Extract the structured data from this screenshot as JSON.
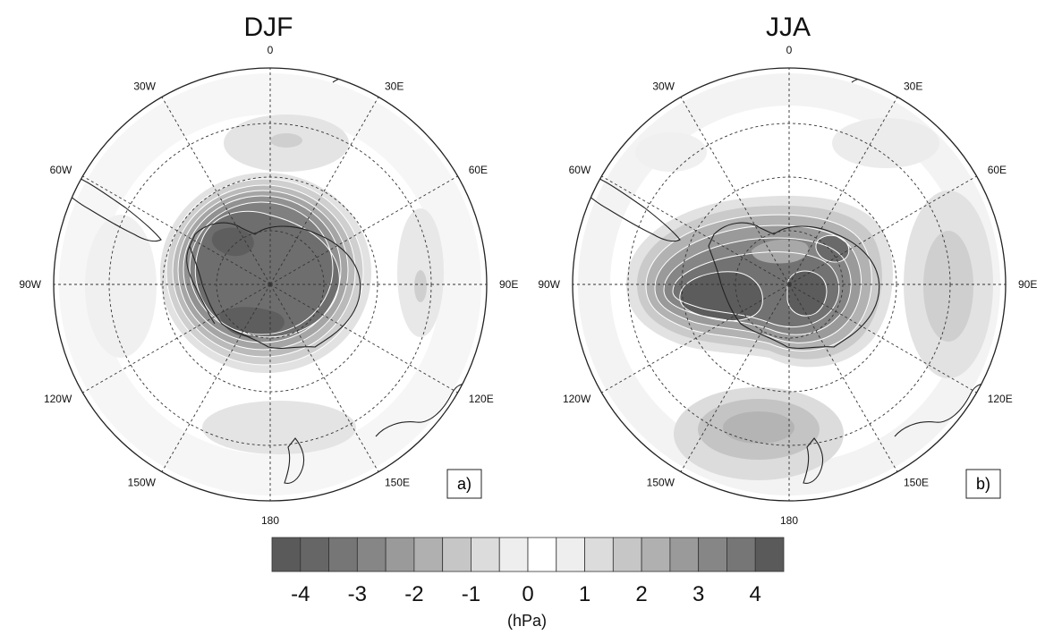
{
  "panels": [
    {
      "title": "DJF",
      "label": "a)"
    },
    {
      "title": "JJA",
      "label": "b)"
    }
  ],
  "longitude_labels": [
    "0",
    "30E",
    "60E",
    "90E",
    "120E",
    "150E",
    "180",
    "150W",
    "120W",
    "90W",
    "60W",
    "30W"
  ],
  "colorbar": {
    "tick_labels": [
      "-4",
      "-3",
      "-2",
      "-1",
      "0",
      "1",
      "2",
      "3",
      "4"
    ],
    "units": "(hPa)",
    "levels": [
      -4.5,
      -4,
      -3.5,
      -3,
      -2.5,
      -2,
      -1.5,
      -1,
      -0.5,
      0.5,
      1,
      1.5,
      2,
      2.5,
      3,
      3.5,
      4,
      4.5
    ],
    "colors": [
      "#5a5a5a",
      "#666666",
      "#767676",
      "#868686",
      "#9a9a9a",
      "#b0b0b0",
      "#c6c6c6",
      "#dcdcdc",
      "#eeeeee",
      "#ffffff",
      "#eeeeee",
      "#dcdcdc",
      "#c6c6c6",
      "#b0b0b0",
      "#9a9a9a",
      "#868686",
      "#767676",
      "#5a5a5a"
    ]
  }
}
